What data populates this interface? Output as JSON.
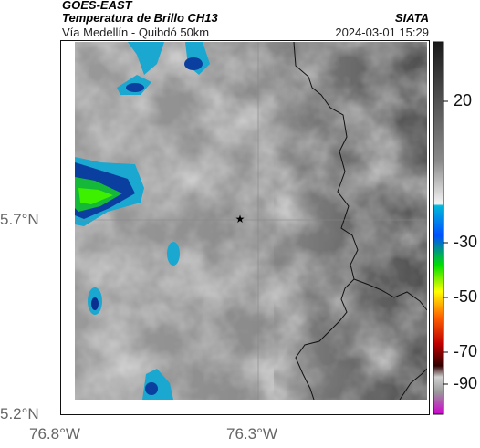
{
  "header": {
    "satellite": "GOES-EAST",
    "product": "Temperatura de Brillo CH13",
    "road": "Vía Medellín - Quibdó 50km",
    "source": "SIATA",
    "timestamp": "2024-03-01 15:29"
  },
  "map": {
    "lat_ticks": [
      "5.7°N",
      "5.2°N"
    ],
    "lon_ticks": [
      "76.8°W",
      "76.3°W"
    ],
    "marker": "star-marker"
  },
  "colorbar": {
    "labels": [
      "20",
      "-30",
      "-50",
      "-70",
      "-90"
    ],
    "colors": [
      "#1a1a1a",
      "#808080",
      "#ffffff",
      "#00c0d0",
      "#0040ff",
      "#00e000",
      "#ffff00",
      "#ff6000",
      "#c00000",
      "#300000",
      "#d0d0d0",
      "#d000d0"
    ]
  }
}
